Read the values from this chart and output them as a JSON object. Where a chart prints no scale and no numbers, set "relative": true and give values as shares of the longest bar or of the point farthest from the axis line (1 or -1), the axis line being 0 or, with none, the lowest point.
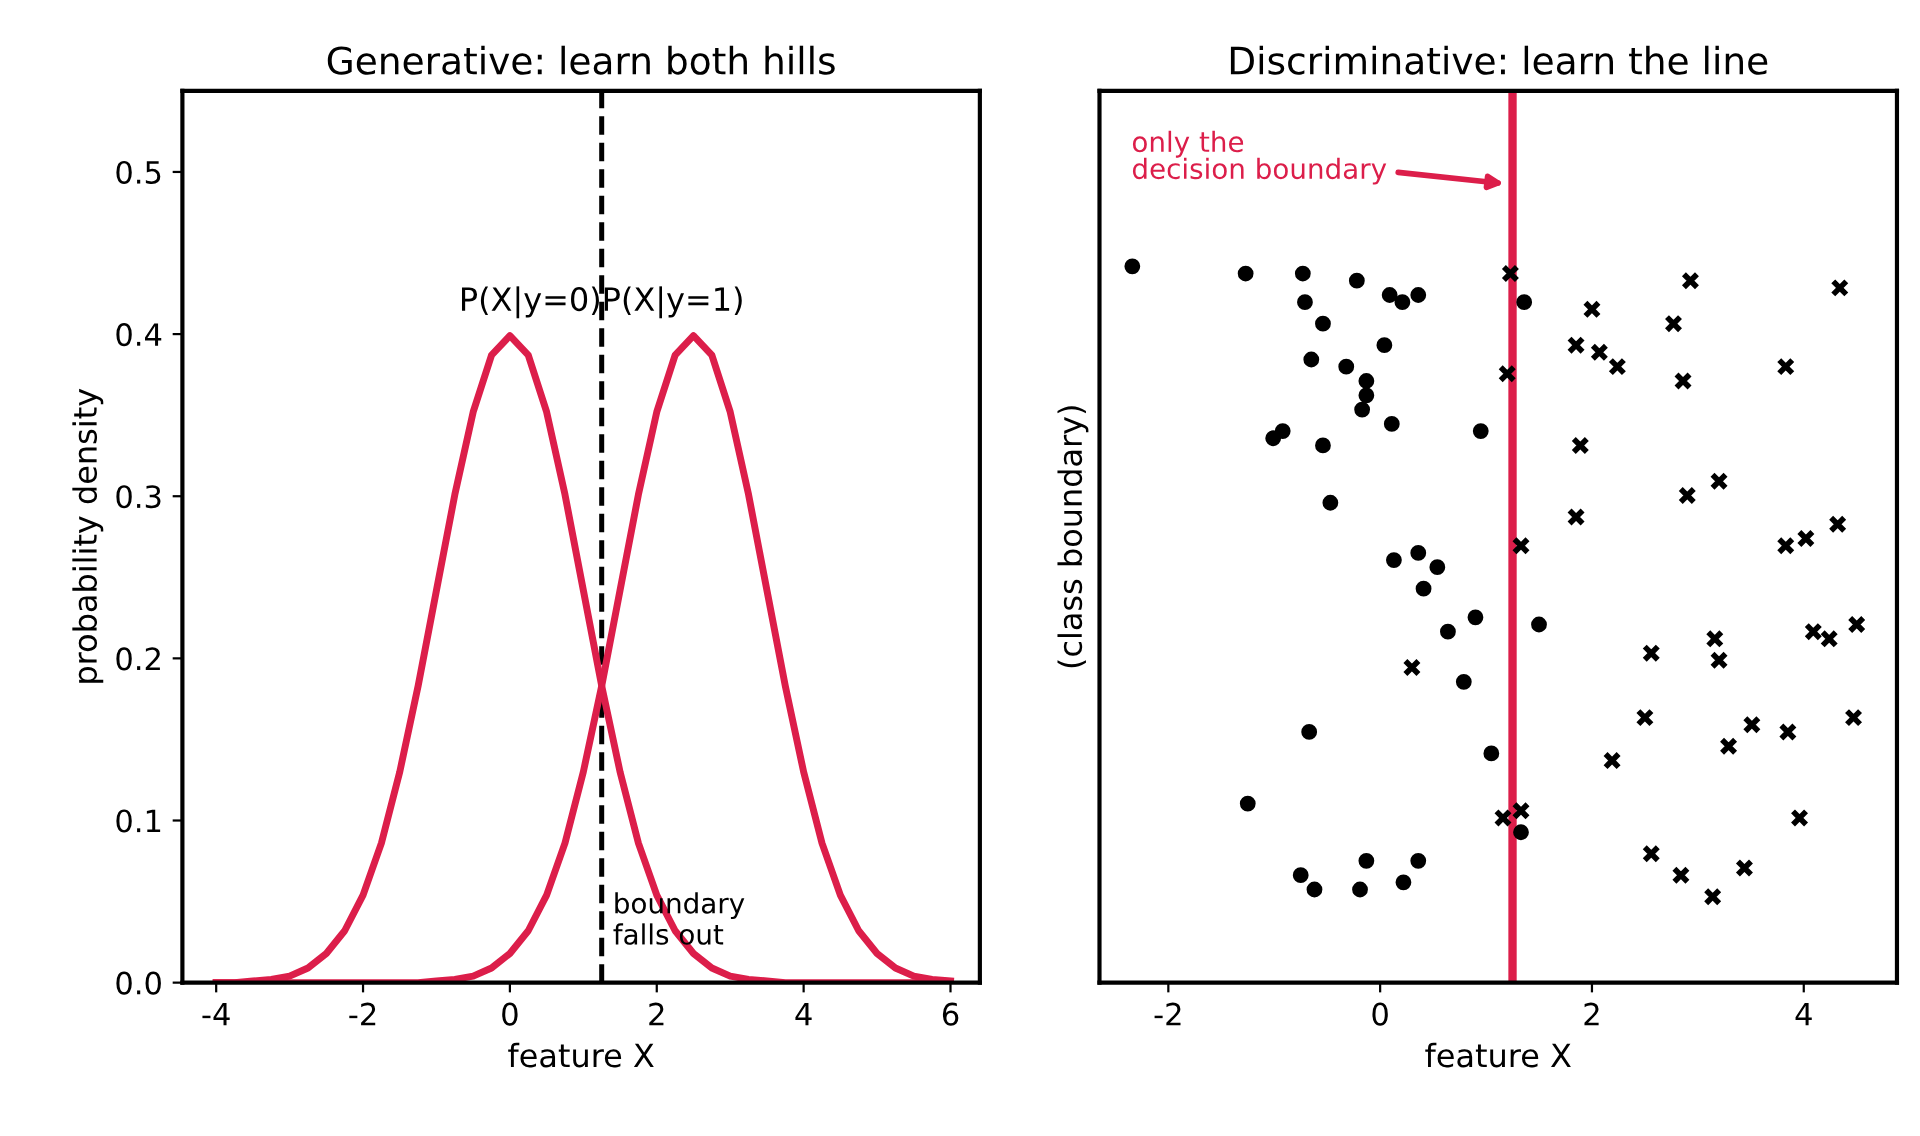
{
  "chart_data": [
    {
      "type": "line",
      "title": "Generative: learn both hills",
      "xlabel": "feature X",
      "ylabel": "probability density",
      "x": [
        -4,
        -3.75,
        -3.5,
        -3.25,
        -3,
        -2.75,
        -2.5,
        -2.25,
        -2,
        -1.75,
        -1.5,
        -1.25,
        -1,
        -0.75,
        -0.5,
        -0.25,
        0,
        0.25,
        0.5,
        0.75,
        1,
        1.25,
        1.5,
        1.75,
        2,
        2.25,
        2.5,
        2.75,
        3,
        3.25,
        3.5,
        3.75,
        4,
        4.25,
        4.5,
        4.75,
        5,
        5.25,
        5.5,
        5.75,
        6
      ],
      "series": [
        {
          "color": "#dc1e4a",
          "values": [
            0,
            0,
            0.001,
            0.002,
            0.004,
            0.009,
            0.018,
            0.032,
            0.054,
            0.086,
            0.13,
            0.183,
            0.242,
            0.301,
            0.352,
            0.387,
            0.399,
            0.387,
            0.352,
            0.301,
            0.242,
            0.183,
            0.13,
            0.086,
            0.054,
            0.032,
            0.018,
            0.009,
            0.004,
            0.002,
            0.001,
            0,
            0,
            0,
            0,
            0,
            0,
            0,
            0,
            0,
            0
          ]
        },
        {
          "color": "#dc1e4a",
          "values": [
            0,
            0,
            0,
            0,
            0,
            0,
            0,
            0,
            0,
            0,
            0,
            0,
            0.001,
            0.002,
            0.004,
            0.009,
            0.018,
            0.032,
            0.054,
            0.086,
            0.13,
            0.183,
            0.242,
            0.301,
            0.352,
            0.387,
            0.399,
            0.387,
            0.352,
            0.301,
            0.242,
            0.183,
            0.13,
            0.086,
            0.054,
            0.032,
            0.018,
            0.009,
            0.004,
            0.002,
            0.001
          ]
        }
      ],
      "xlim": [
        -4.46,
        6.4
      ],
      "ylim": [
        0,
        0.55
      ],
      "xticks": [
        -4,
        -2,
        0,
        2,
        4,
        6
      ],
      "yticks": [
        {
          "value": 0,
          "label": "0.0"
        },
        {
          "value": 0.1,
          "label": "0.1"
        },
        {
          "value": 0.2,
          "label": "0.2"
        },
        {
          "value": 0.3,
          "label": "0.3"
        },
        {
          "value": 0.4,
          "label": "0.4"
        },
        {
          "value": 0.5,
          "label": "0.5"
        }
      ],
      "ref_lines": [
        {
          "axis": "x",
          "value": 1.25,
          "color": "#000000",
          "line_style": "dashed"
        }
      ],
      "annotations": [
        "P(X|y=0)",
        "P(X|y=1)",
        {
          "text": "boundary\nfalls out",
          "x": 1.25,
          "y": 0.02
        }
      ],
      "grid": false,
      "legend": false,
      "marker": "none",
      "line_style": "solid"
    },
    {
      "type": "scatter",
      "title": "Discriminative: learn the line",
      "xlabel": "feature X",
      "ylabel": "(class boundary)",
      "relative": true,
      "tick_labels": "x",
      "xlim": [
        -2.65,
        4.88
      ],
      "xticks": [
        -2,
        0,
        2,
        4
      ],
      "series": [
        {
          "color": "#000000",
          "marker": "circle",
          "x": [
            -2.34,
            -1.27,
            -0.73,
            -0.22,
            -0.71,
            0.09,
            0.21,
            0.36,
            -0.54,
            0.04,
            -0.65,
            -0.32,
            -0.13,
            -0.13,
            -0.17,
            -0.92,
            -1.01,
            -0.54,
            0.11,
            0.95,
            -0.47,
            1.36,
            0.13,
            0.36,
            0.54,
            0.41,
            0.9,
            0.64,
            0.79,
            1.5,
            -0.67,
            1.05,
            -1.25,
            1.33,
            -0.75,
            -0.13,
            0.36,
            -0.62,
            -0.19,
            0.22
          ],
          "values": [
            1.0,
            0.99,
            0.99,
            0.98,
            0.95,
            0.96,
            0.95,
            0.96,
            0.92,
            0.89,
            0.87,
            0.86,
            0.84,
            0.82,
            0.8,
            0.77,
            0.76,
            0.75,
            0.78,
            0.77,
            0.67,
            0.95,
            0.59,
            0.6,
            0.58,
            0.55,
            0.51,
            0.49,
            0.42,
            0.5,
            0.35,
            0.32,
            0.25,
            0.21,
            0.15,
            0.17,
            0.17,
            0.13,
            0.13,
            0.14
          ]
        },
        {
          "color": "#000000",
          "marker": "cross",
          "x": [
            1.23,
            2.93,
            4.34,
            2.0,
            2.77,
            1.85,
            2.07,
            2.24,
            2.86,
            3.83,
            1.2,
            1.89,
            3.2,
            2.9,
            1.85,
            4.32,
            3.83,
            4.02,
            1.33,
            4.5,
            4.09,
            4.24,
            3.16,
            2.56,
            3.2,
            0.3,
            2.5,
            4.47,
            3.51,
            3.29,
            3.85,
            2.19,
            3.96,
            1.16,
            1.33,
            2.56,
            2.84,
            3.44,
            3.14
          ],
          "values": [
            0.99,
            0.98,
            0.97,
            0.94,
            0.92,
            0.89,
            0.88,
            0.86,
            0.84,
            0.86,
            0.85,
            0.75,
            0.7,
            0.68,
            0.65,
            0.64,
            0.61,
            0.62,
            0.61,
            0.5,
            0.49,
            0.48,
            0.48,
            0.46,
            0.45,
            0.44,
            0.37,
            0.37,
            0.36,
            0.33,
            0.35,
            0.31,
            0.23,
            0.23,
            0.24,
            0.18,
            0.15,
            0.16,
            0.12
          ]
        }
      ],
      "ref_lines": [
        {
          "axis": "x",
          "value": 1.25,
          "color": "#dc1e4a",
          "line_style": "solid"
        }
      ],
      "annotations": [
        "only the\ndecision boundary"
      ],
      "grid": false,
      "legend": false
    }
  ]
}
